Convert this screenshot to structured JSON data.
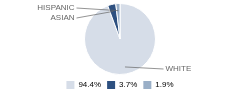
{
  "chart_data": {
    "type": "pie",
    "categories": [
      "WHITE",
      "ASIAN",
      "HISPANIC"
    ],
    "values": [
      94.4,
      3.7,
      1.9
    ],
    "value_labels": [
      "94.4%",
      "3.7%",
      "1.9%"
    ],
    "colors": [
      "#d6dde8",
      "#2d5080",
      "#9aafc7"
    ],
    "legend": "bottom"
  }
}
